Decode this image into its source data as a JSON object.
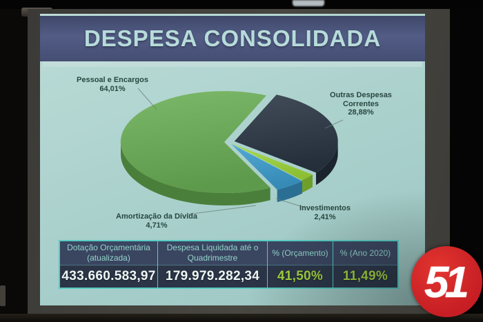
{
  "slide": {
    "title": "DESPESA CONSOLIDADA"
  },
  "chart_data": {
    "type": "pie",
    "title": "DESPESA CONSOLIDADA",
    "unit": "%",
    "legend_position": "callout-labels",
    "slices": [
      {
        "label": "Outras Despesas Correntes",
        "label_lines": [
          "Outras Despesas",
          "Correntes"
        ],
        "value": 28.88,
        "pct_label": "28,88%",
        "color": "#2e3945",
        "side_color": "#1c242e"
      },
      {
        "label": "Investimentos",
        "value": 2.41,
        "pct_label": "2,41%",
        "color": "#97c93e",
        "side_color": "#6f9e2a"
      },
      {
        "label": "Amortização da Dívida",
        "value": 4.71,
        "pct_label": "4,71%",
        "color": "#3f95c0",
        "side_color": "#2b6e93"
      },
      {
        "label": "Pessoal e Encargos",
        "value": 64.01,
        "pct_label": "64,01%",
        "color": "#68a455",
        "side_color": "#4a7f3b"
      }
    ]
  },
  "table": {
    "columns": [
      {
        "header_line1": "Dotação Orçamentária",
        "header_line2": "(atualizada)",
        "value": "433.660.583,97",
        "value_color": "#eef6f4"
      },
      {
        "header_line1": "Despesa Liquidada até o",
        "header_line2": "Quadrimestre",
        "value": "179.979.282,34",
        "value_color": "#eef6f4"
      },
      {
        "header_line1": "%  (Orçamento)",
        "header_line2": "",
        "value": "41,50%",
        "value_color": "#a6d63e"
      },
      {
        "header_line1": "%  (Ano 2020)",
        "header_line2": "",
        "value": "11,49%",
        "value_color": "#a6d63e"
      }
    ]
  },
  "logo": {
    "text": "51",
    "color": "#d32128"
  },
  "colors": {
    "title_text": "#b7dcda",
    "banner_bg": "#4a5379",
    "slide_bg": "#aed3ce",
    "label_text": "#27473f",
    "table_border": "#58cbc2",
    "table_header_bg": "#3a4560",
    "table_value_bg": "#2b3547",
    "header_text": "#93d4cc",
    "logo_red": "#d32128"
  }
}
